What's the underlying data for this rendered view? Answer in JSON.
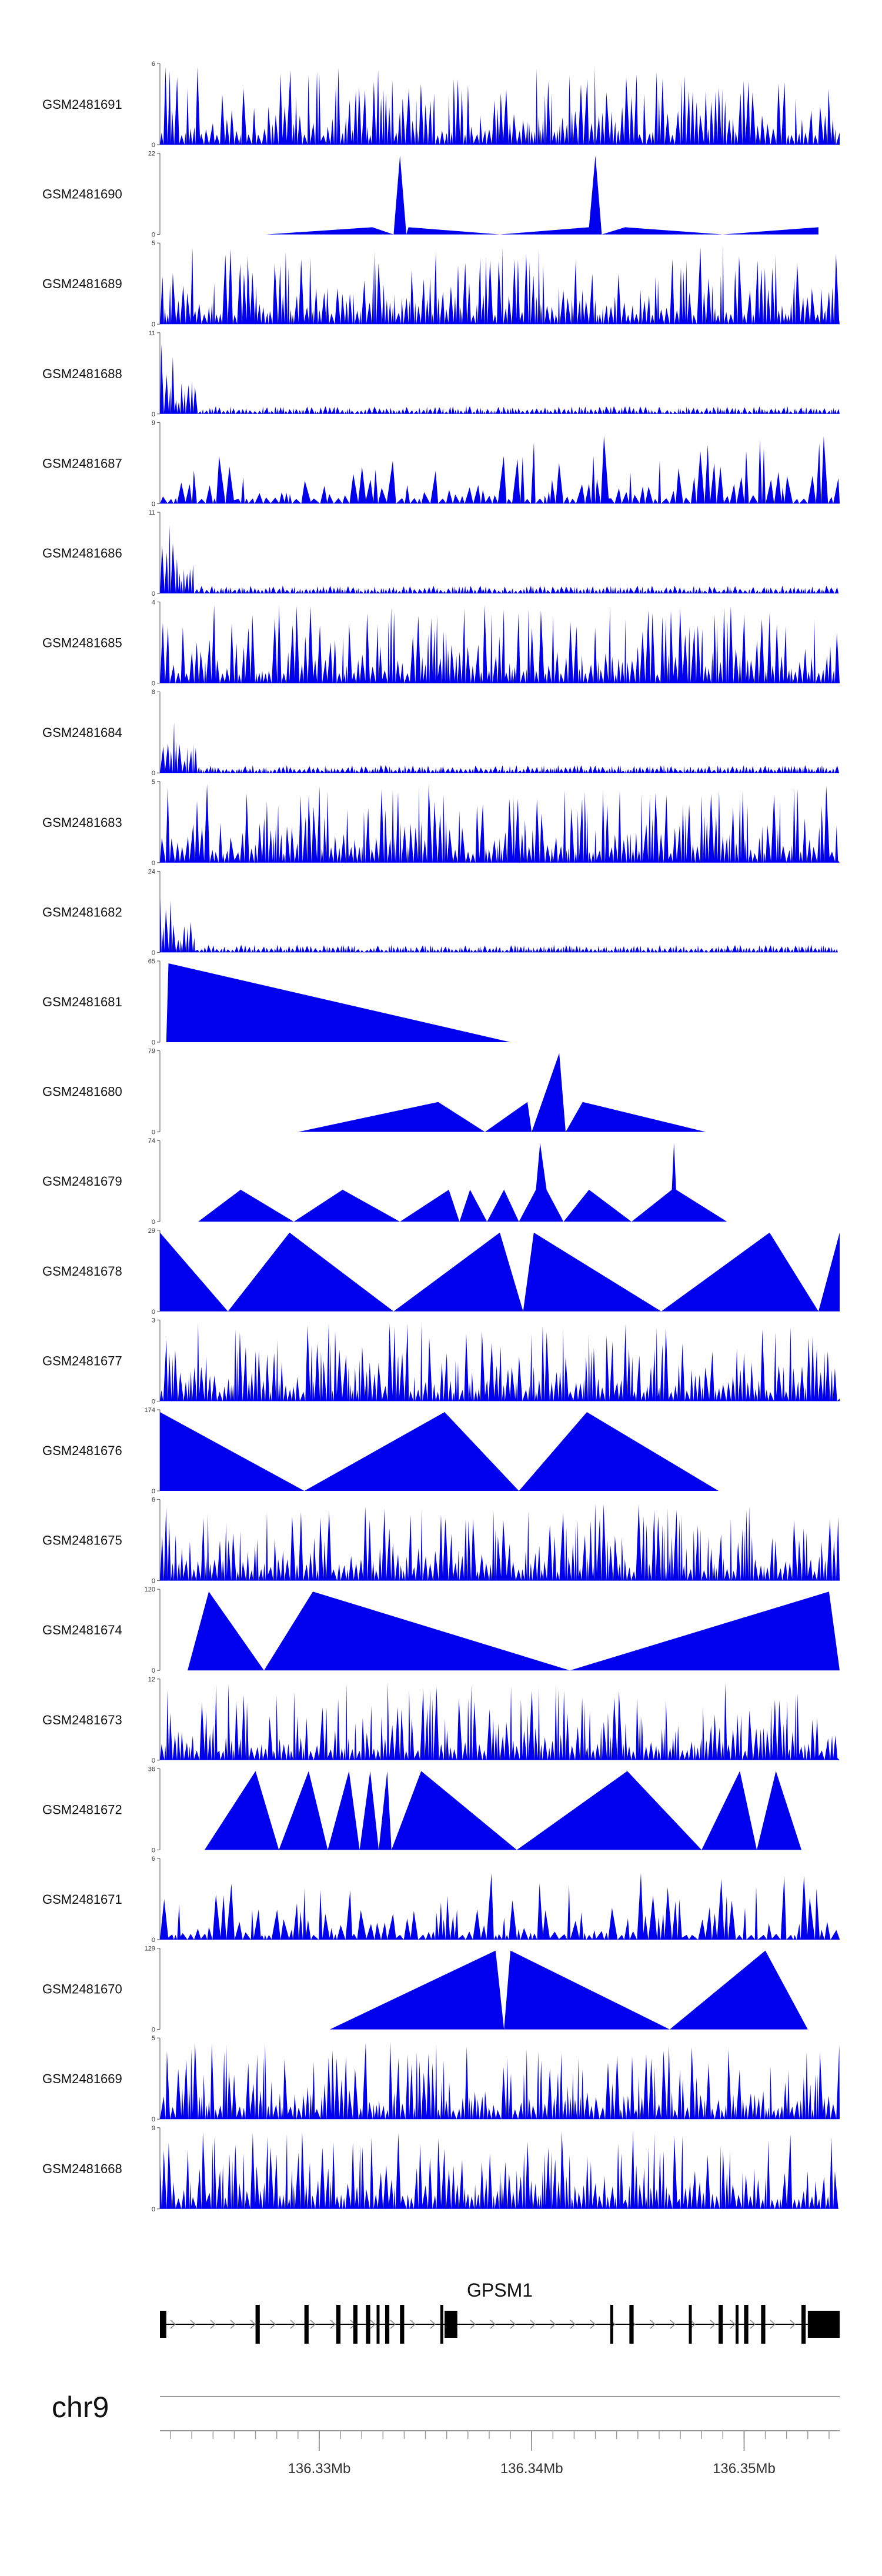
{
  "colors": {
    "coverage": "#0000ee",
    "gene": "#000000",
    "axis": "#555555",
    "strand_arrow": "#888888"
  },
  "chart_data": {
    "type": "area",
    "description_scope": "coverage tracks",
    "x_range_mb": [
      136.3225,
      136.3545
    ],
    "tracks": [
      {
        "name": "GSM2481691",
        "ymax": 6,
        "profile": "dense"
      },
      {
        "name": "GSM2481690",
        "ymax": 22,
        "profile": "peaks",
        "points": [
          [
            136.3275,
            0
          ],
          [
            136.3325,
            2
          ],
          [
            136.3335,
            0
          ],
          [
            136.3338,
            22
          ],
          [
            136.3341,
            0
          ],
          [
            136.3342,
            2
          ],
          [
            136.3385,
            0
          ],
          [
            136.3427,
            2
          ],
          [
            136.343,
            22
          ],
          [
            136.3433,
            0
          ],
          [
            136.3444,
            2
          ],
          [
            136.349,
            0
          ],
          [
            136.3535,
            2
          ],
          [
            136.3535,
            0
          ]
        ]
      },
      {
        "name": "GSM2481689",
        "ymax": 5,
        "profile": "dense"
      },
      {
        "name": "GSM2481688",
        "ymax": 11,
        "profile": "decay"
      },
      {
        "name": "GSM2481687",
        "ymax": 9,
        "profile": "sparse"
      },
      {
        "name": "GSM2481686",
        "ymax": 11,
        "profile": "decay"
      },
      {
        "name": "GSM2481685",
        "ymax": 4,
        "profile": "dense"
      },
      {
        "name": "GSM2481684",
        "ymax": 8,
        "profile": "decay"
      },
      {
        "name": "GSM2481683",
        "ymax": 5,
        "profile": "dense"
      },
      {
        "name": "GSM2481682",
        "ymax": 24,
        "profile": "decay"
      },
      {
        "name": "GSM2481681",
        "ymax": 65,
        "profile": "peaks",
        "points": [
          [
            136.3228,
            0
          ],
          [
            136.3229,
            65
          ],
          [
            136.339,
            0
          ]
        ]
      },
      {
        "name": "GSM2481680",
        "ymax": 79,
        "profile": "peaks",
        "points": [
          [
            136.329,
            0
          ],
          [
            136.3356,
            30
          ],
          [
            136.3378,
            0
          ],
          [
            136.3398,
            30
          ],
          [
            136.34,
            0
          ],
          [
            136.3413,
            79
          ],
          [
            136.3416,
            0
          ],
          [
            136.3424,
            30
          ],
          [
            136.3482,
            0
          ]
        ]
      },
      {
        "name": "GSM2481679",
        "ymax": 74,
        "profile": "peaks",
        "points": [
          [
            136.3243,
            0
          ],
          [
            136.3263,
            30
          ],
          [
            136.3288,
            0
          ],
          [
            136.3311,
            30
          ],
          [
            136.3338,
            0
          ],
          [
            136.3361,
            30
          ],
          [
            136.3366,
            0
          ],
          [
            136.3371,
            30
          ],
          [
            136.3379,
            0
          ],
          [
            136.3387,
            30
          ],
          [
            136.3394,
            0
          ],
          [
            136.3402,
            30
          ],
          [
            136.3404,
            74
          ],
          [
            136.3407,
            30
          ],
          [
            136.3415,
            0
          ],
          [
            136.3427,
            30
          ],
          [
            136.3447,
            0
          ],
          [
            136.3466,
            30
          ],
          [
            136.3467,
            74
          ],
          [
            136.3468,
            30
          ],
          [
            136.3492,
            0
          ]
        ]
      },
      {
        "name": "GSM2481678",
        "ymax": 29,
        "profile": "peaks",
        "points": [
          [
            136.3225,
            0
          ],
          [
            136.3225,
            29
          ],
          [
            136.3257,
            0
          ],
          [
            136.3286,
            29
          ],
          [
            136.3335,
            0
          ],
          [
            136.3385,
            29
          ],
          [
            136.3396,
            0
          ],
          [
            136.3401,
            29
          ],
          [
            136.3461,
            0
          ],
          [
            136.3512,
            29
          ],
          [
            136.3535,
            0
          ],
          [
            136.3545,
            29
          ],
          [
            136.3545,
            0
          ]
        ]
      },
      {
        "name": "GSM2481677",
        "ymax": 3,
        "profile": "dense"
      },
      {
        "name": "GSM2481676",
        "ymax": 174,
        "profile": "peaks",
        "points": [
          [
            136.3225,
            0
          ],
          [
            136.3225,
            174
          ],
          [
            136.3293,
            0
          ],
          [
            136.3359,
            174
          ],
          [
            136.3394,
            0
          ],
          [
            136.3426,
            174
          ],
          [
            136.3488,
            0
          ]
        ]
      },
      {
        "name": "GSM2481675",
        "ymax": 6,
        "profile": "dense"
      },
      {
        "name": "GSM2481674",
        "ymax": 120,
        "profile": "peaks",
        "points": [
          [
            136.3238,
            0
          ],
          [
            136.3248,
            120
          ],
          [
            136.3274,
            0
          ],
          [
            136.3297,
            120
          ],
          [
            136.3418,
            0
          ],
          [
            136.354,
            120
          ],
          [
            136.3545,
            0
          ]
        ]
      },
      {
        "name": "GSM2481673",
        "ymax": 12,
        "profile": "dense"
      },
      {
        "name": "GSM2481672",
        "ymax": 36,
        "profile": "peaks",
        "points": [
          [
            136.3246,
            0
          ],
          [
            136.327,
            36
          ],
          [
            136.3281,
            0
          ],
          [
            136.3295,
            36
          ],
          [
            136.3304,
            0
          ],
          [
            136.3314,
            36
          ],
          [
            136.3319,
            0
          ],
          [
            136.3324,
            36
          ],
          [
            136.3328,
            0
          ],
          [
            136.3332,
            36
          ],
          [
            136.3334,
            0
          ],
          [
            136.3348,
            36
          ],
          [
            136.3393,
            0
          ],
          [
            136.3445,
            36
          ],
          [
            136.348,
            0
          ],
          [
            136.3498,
            36
          ],
          [
            136.3506,
            0
          ],
          [
            136.3515,
            36
          ],
          [
            136.3527,
            0
          ]
        ]
      },
      {
        "name": "GSM2481671",
        "ymax": 6,
        "profile": "sparse"
      },
      {
        "name": "GSM2481670",
        "ymax": 129,
        "profile": "peaks",
        "points": [
          [
            136.3305,
            0
          ],
          [
            136.3383,
            129
          ],
          [
            136.3387,
            0
          ],
          [
            136.339,
            129
          ],
          [
            136.3465,
            0
          ],
          [
            136.351,
            129
          ],
          [
            136.353,
            0
          ]
        ]
      },
      {
        "name": "GSM2481669",
        "ymax": 5,
        "profile": "dense"
      },
      {
        "name": "GSM2481668",
        "ymax": 9,
        "profile": "dense"
      }
    ],
    "gene": {
      "name": "GPSM1",
      "start": 136.3225,
      "end": 136.3545,
      "exons": [
        [
          136.3225,
          136.3228,
          "utr"
        ],
        [
          136.327,
          136.3272,
          "cds"
        ],
        [
          136.3293,
          136.3295,
          "cds"
        ],
        [
          136.3308,
          136.331,
          "cds"
        ],
        [
          136.3316,
          136.3318,
          "cds"
        ],
        [
          136.3322,
          136.3324,
          "cds"
        ],
        [
          136.3327,
          136.3328,
          "cds"
        ],
        [
          136.3331,
          136.3333,
          "cds"
        ],
        [
          136.3338,
          136.334,
          "cds"
        ],
        [
          136.3357,
          136.3358,
          "cds"
        ],
        [
          136.3359,
          136.3365,
          "utr"
        ],
        [
          136.3437,
          136.3438,
          "cds"
        ],
        [
          136.3446,
          136.3448,
          "cds"
        ],
        [
          136.3474,
          136.3475,
          "cds"
        ],
        [
          136.3488,
          136.349,
          "cds"
        ],
        [
          136.3496,
          136.3497,
          "cds"
        ],
        [
          136.35,
          136.3502,
          "cds"
        ],
        [
          136.3508,
          136.351,
          "cds"
        ],
        [
          136.3527,
          136.3529,
          "cds"
        ],
        [
          136.353,
          136.3545,
          "utr"
        ]
      ]
    },
    "axis": {
      "chromosome": "chr9",
      "ticks": [
        136.33,
        136.34,
        136.35
      ],
      "tick_labels": [
        "136.33Mb",
        "136.34Mb",
        "136.35Mb"
      ],
      "minor_step": 0.001
    }
  }
}
